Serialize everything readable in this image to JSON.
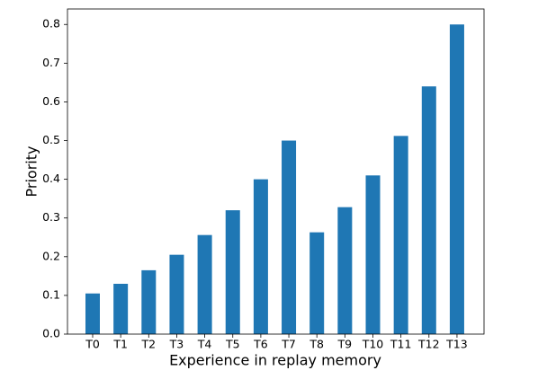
{
  "chart_data": {
    "type": "bar",
    "x_label": "Experience in replay memory",
    "y_label": "Priority",
    "categories": [
      "T0",
      "T1",
      "T2",
      "T3",
      "T4",
      "T5",
      "T6",
      "T7",
      "T8",
      "T9",
      "T10",
      "T11",
      "T12",
      "T13"
    ],
    "values": [
      0.105,
      0.13,
      0.165,
      0.205,
      0.256,
      0.32,
      0.4,
      0.5,
      0.263,
      0.328,
      0.41,
      0.512,
      0.64,
      0.8
    ],
    "color": "#1f77b4",
    "ylim": [
      0,
      0.84
    ],
    "yticks": [
      {
        "value": 0,
        "label": "0.0"
      },
      0.1,
      0.2,
      0.3,
      0.4,
      0.5,
      0.6,
      0.7,
      0.8
    ],
    "grid": false
  }
}
